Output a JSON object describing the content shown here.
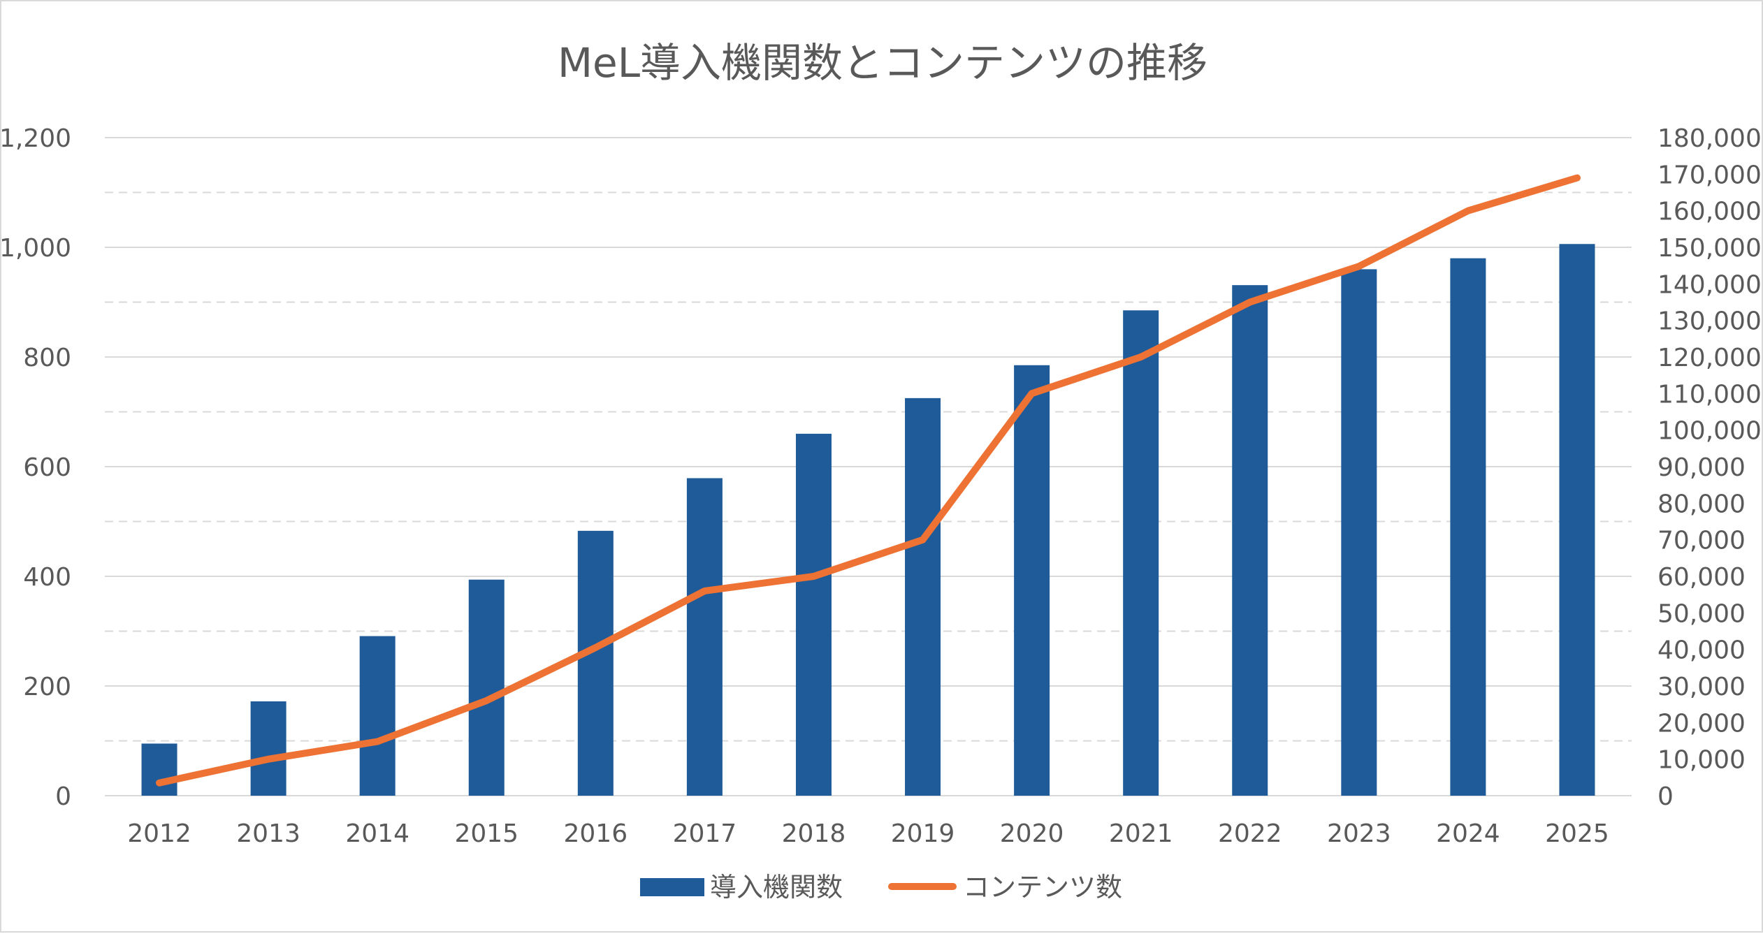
{
  "chart_data": {
    "type": "bar",
    "title": "MeL導入機関数とコンテンツの推移",
    "xlabel": "",
    "ylabel": "",
    "y2label": "",
    "categories": [
      "2012",
      "2013",
      "2014",
      "2015",
      "2016",
      "2017",
      "2018",
      "2019",
      "2020",
      "2021",
      "2022",
      "2023",
      "2024",
      "2025"
    ],
    "series": [
      {
        "name": "導入機関数",
        "type": "bar",
        "axis": "left",
        "color": "#1f5b99",
        "values": [
          95,
          172,
          291,
          394,
          483,
          579,
          660,
          725,
          785,
          885,
          931,
          960,
          980,
          1006
        ]
      },
      {
        "name": "コンテンツ数",
        "type": "line",
        "axis": "right",
        "color": "#ed7233",
        "values": [
          3500,
          10000,
          14800,
          26000,
          40500,
          56000,
          60000,
          70000,
          110000,
          120000,
          135000,
          144800,
          160000,
          169000
        ]
      }
    ],
    "ylim": [
      0,
      1200
    ],
    "y2lim": [
      0,
      180000
    ],
    "yticks": [
      "0",
      "200",
      "400",
      "600",
      "800",
      "1,000",
      "1,200"
    ],
    "y2ticks": [
      "0",
      "10,000",
      "20,000",
      "30,000",
      "40,000",
      "50,000",
      "60,000",
      "70,000",
      "80,000",
      "90,000",
      "100,000",
      "110,000",
      "120,000",
      "130,000",
      "140,000",
      "150,000",
      "160,000",
      "170,000",
      "180,000"
    ],
    "grid": true,
    "legend": "bottom-center"
  }
}
